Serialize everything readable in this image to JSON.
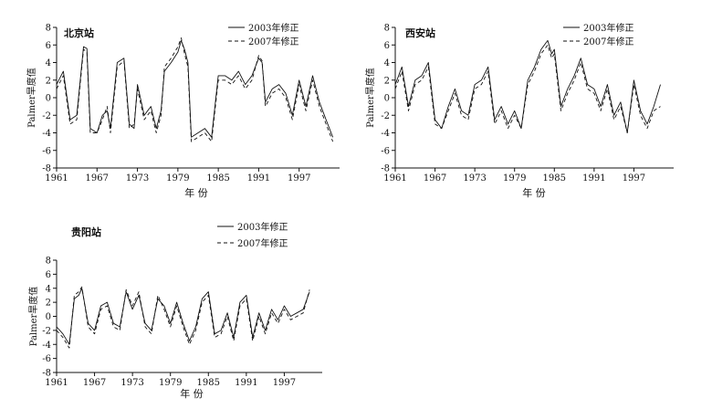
{
  "chart_data": [
    {
      "type": "line",
      "station": "北京站",
      "xlabel": "年 份",
      "ylabel": "Palmer旱度值",
      "ylim": [
        -8,
        8
      ],
      "yticks": [
        8,
        6,
        4,
        2,
        0,
        -2,
        -4,
        -6,
        -8
      ],
      "xlim": [
        1961,
        2003
      ],
      "xticks": [
        1961,
        1967,
        1973,
        1979,
        1985,
        1991,
        1997
      ],
      "legend_position": "top-right",
      "series": [
        {
          "name": "2003年修正",
          "style": "solid",
          "x": [
            1961,
            1962,
            1963,
            1964,
            1965,
            1965.5,
            1966,
            1967,
            1967.8,
            1968.5,
            1969,
            1970,
            1971,
            1971.8,
            1972.5,
            1973,
            1974,
            1975,
            1975.8,
            1976.5,
            1977,
            1978,
            1979,
            1979.5,
            1980,
            1980.5,
            1981,
            1982,
            1983,
            1984,
            1985,
            1986,
            1987,
            1988,
            1989,
            1990,
            1991,
            1991.5,
            1992,
            1993,
            1994,
            1995,
            1996,
            1997,
            1998,
            1999,
            2000,
            2001,
            2002
          ],
          "y": [
            1.5,
            3.0,
            -2.5,
            -2.0,
            5.8,
            5.6,
            -3.5,
            -4.0,
            -2.0,
            -1.5,
            -3.5,
            4.0,
            4.5,
            -3.0,
            -3.5,
            1.5,
            -2.0,
            -1.0,
            -3.5,
            -1.5,
            3.0,
            4.0,
            5.2,
            6.5,
            5.5,
            4.0,
            -4.5,
            -4.0,
            -3.5,
            -4.5,
            2.5,
            2.5,
            2.0,
            3.0,
            1.5,
            2.5,
            4.5,
            4.0,
            -0.5,
            1.0,
            1.5,
            0.5,
            -2.0,
            2.0,
            -1.0,
            2.5,
            -0.5,
            -2.5,
            -4.5
          ]
        },
        {
          "name": "2007年修正",
          "style": "dashed",
          "x": [
            1961,
            1962,
            1963,
            1964,
            1965,
            1965.5,
            1966,
            1967,
            1967.8,
            1968.5,
            1969,
            1970,
            1971,
            1971.8,
            1972.5,
            1973,
            1974,
            1975,
            1975.8,
            1976.5,
            1977,
            1978,
            1979,
            1979.5,
            1980,
            1980.5,
            1981,
            1982,
            1983,
            1984,
            1985,
            1986,
            1987,
            1988,
            1989,
            1990,
            1991,
            1991.5,
            1992,
            1993,
            1994,
            1995,
            1996,
            1997,
            1998,
            1999,
            2000,
            2001,
            2002
          ],
          "y": [
            1.0,
            2.5,
            -3.0,
            -2.5,
            5.5,
            5.2,
            -4.0,
            -4.0,
            -2.5,
            -1.0,
            -4.0,
            3.5,
            4.2,
            -3.5,
            -3.0,
            1.0,
            -2.5,
            -1.5,
            -4.0,
            -2.0,
            3.5,
            4.5,
            5.8,
            6.8,
            5.0,
            3.5,
            -5.0,
            -4.5,
            -4.0,
            -5.0,
            2.0,
            2.0,
            1.5,
            2.5,
            1.0,
            2.0,
            4.8,
            4.2,
            -1.0,
            0.5,
            1.0,
            0.0,
            -2.5,
            1.5,
            -1.5,
            2.0,
            -1.0,
            -3.0,
            -5.0
          ]
        }
      ]
    },
    {
      "type": "line",
      "station": "西安站",
      "xlabel": "年 份",
      "ylabel": "Palmer旱度值",
      "ylim": [
        -8,
        8
      ],
      "yticks": [
        8,
        6,
        4,
        2,
        0,
        -2,
        -4,
        -6,
        -8
      ],
      "xlim": [
        1961,
        2003
      ],
      "xticks": [
        1961,
        1967,
        1973,
        1979,
        1985,
        1991,
        1997
      ],
      "legend_position": "top-right",
      "series": [
        {
          "name": "2003年修正",
          "style": "solid",
          "x": [
            1961,
            1962,
            1963,
            1964,
            1965,
            1966,
            1967,
            1968,
            1969,
            1970,
            1971,
            1972,
            1973,
            1974,
            1975,
            1976,
            1977,
            1978,
            1979,
            1980,
            1981,
            1982,
            1983,
            1984,
            1984.6,
            1985,
            1986,
            1987,
            1988,
            1989,
            1990,
            1991,
            1992,
            1993,
            1994,
            1995,
            1996,
            1997,
            1998,
            1999,
            2000,
            2001
          ],
          "y": [
            1.5,
            3.5,
            -1.0,
            2.0,
            2.5,
            4.0,
            -2.5,
            -3.5,
            -1.0,
            1.0,
            -1.5,
            -2.0,
            1.5,
            2.0,
            3.5,
            -2.5,
            -1.0,
            -3.0,
            -1.5,
            -3.5,
            2.0,
            3.5,
            5.5,
            6.5,
            5.0,
            5.5,
            -1.0,
            1.0,
            2.5,
            4.5,
            1.5,
            1.0,
            -1.0,
            1.5,
            -2.0,
            -0.5,
            -4.0,
            2.0,
            -1.5,
            -3.0,
            -1.0,
            1.5
          ]
        },
        {
          "name": "2007年修正",
          "style": "dashed",
          "x": [
            1961,
            1962,
            1963,
            1964,
            1965,
            1966,
            1967,
            1968,
            1969,
            1970,
            1971,
            1972,
            1973,
            1974,
            1975,
            1976,
            1977,
            1978,
            1979,
            1980,
            1981,
            1982,
            1983,
            1984,
            1984.6,
            1985,
            1986,
            1987,
            1988,
            1989,
            1990,
            1991,
            1992,
            1993,
            1994,
            1995,
            1996,
            1997,
            1998,
            1999,
            2000,
            2001
          ],
          "y": [
            1.0,
            3.0,
            -1.5,
            1.5,
            2.0,
            3.5,
            -3.0,
            -3.5,
            -1.5,
            0.5,
            -2.0,
            -2.5,
            1.0,
            1.5,
            3.0,
            -3.0,
            -1.5,
            -3.5,
            -2.0,
            -3.5,
            1.5,
            3.0,
            5.0,
            6.0,
            4.5,
            5.0,
            -1.5,
            0.5,
            2.0,
            4.0,
            1.0,
            0.5,
            -1.5,
            1.0,
            -2.5,
            -1.0,
            -4.0,
            1.5,
            -2.0,
            -3.5,
            -1.5,
            -1.0
          ]
        }
      ]
    },
    {
      "type": "line",
      "station": "贵阳站",
      "xlabel": "年 份",
      "ylabel": "Palmer旱度值",
      "ylim": [
        -8,
        8
      ],
      "yticks": [
        8,
        6,
        4,
        2,
        0,
        -2,
        -4,
        -6,
        -8
      ],
      "xlim": [
        1961,
        2003
      ],
      "xticks": [
        1961,
        1967,
        1973,
        1979,
        1985,
        1991,
        1997
      ],
      "legend_position": "top-right",
      "series": [
        {
          "name": "2003年修正",
          "style": "solid",
          "x": [
            1961,
            1962,
            1963,
            1963.8,
            1964.5,
            1965,
            1966,
            1967,
            1968,
            1969,
            1970,
            1971,
            1972,
            1973,
            1974,
            1975,
            1976,
            1977,
            1978,
            1979,
            1980,
            1981,
            1982,
            1983,
            1984,
            1985,
            1986,
            1987,
            1988,
            1989,
            1990,
            1991,
            1992,
            1993,
            1994,
            1995,
            1996,
            1997,
            1998,
            1999,
            2000,
            2001
          ],
          "y": [
            -1.5,
            -2.5,
            -4.0,
            2.5,
            3.0,
            4.0,
            -1.0,
            -2.0,
            1.5,
            2.0,
            -1.0,
            -1.5,
            3.5,
            1.0,
            3.0,
            -1.0,
            -2.0,
            2.5,
            1.5,
            -1.0,
            2.0,
            -1.0,
            -3.5,
            -1.5,
            2.5,
            3.5,
            -2.5,
            -2.0,
            0.5,
            -3.0,
            2.0,
            3.0,
            -3.0,
            0.5,
            -2.0,
            1.0,
            -0.5,
            1.5,
            0.0,
            0.5,
            1.0,
            3.5
          ]
        },
        {
          "name": "2007年修正",
          "style": "dashed",
          "x": [
            1961,
            1962,
            1963,
            1963.8,
            1964.5,
            1965,
            1966,
            1967,
            1968,
            1969,
            1970,
            1971,
            1972,
            1973,
            1974,
            1975,
            1976,
            1977,
            1978,
            1979,
            1980,
            1981,
            1982,
            1983,
            1984,
            1985,
            1986,
            1987,
            1988,
            1989,
            1990,
            1991,
            1992,
            1993,
            1994,
            1995,
            1996,
            1997,
            1998,
            1999,
            2000,
            2001
          ],
          "y": [
            -2.0,
            -3.0,
            -4.5,
            3.0,
            3.5,
            4.2,
            -1.5,
            -2.5,
            1.0,
            1.5,
            -1.5,
            -2.0,
            3.8,
            1.5,
            3.5,
            -1.5,
            -2.5,
            3.0,
            1.0,
            -1.5,
            1.5,
            -1.5,
            -4.0,
            -2.0,
            2.0,
            3.0,
            -3.0,
            -2.5,
            0.0,
            -3.5,
            1.5,
            2.5,
            -3.5,
            0.0,
            -2.5,
            0.5,
            -1.0,
            1.0,
            -0.5,
            0.0,
            0.5,
            3.8
          ]
        }
      ]
    }
  ]
}
